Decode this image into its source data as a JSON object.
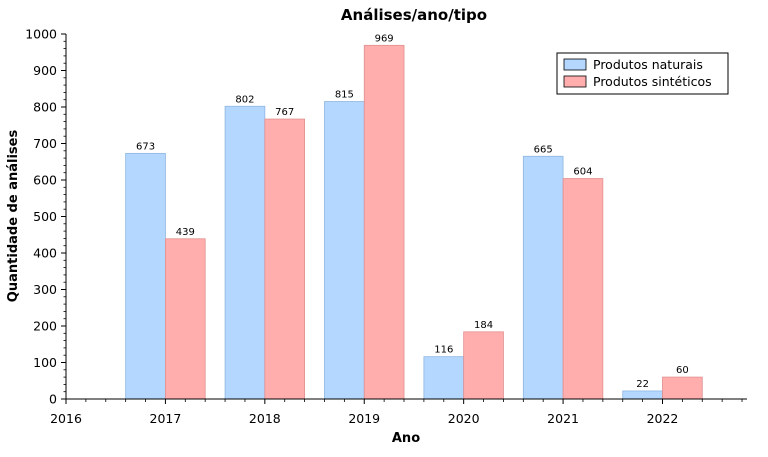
{
  "chart_data": {
    "type": "bar",
    "title": "Análises/ano/tipo",
    "xlabel": "Ano",
    "ylabel": "Quantidade de análises",
    "x_ticks": [
      "2016",
      "2017",
      "2018",
      "2019",
      "2020",
      "2021",
      "2022"
    ],
    "y_ticks": [
      "0",
      "100",
      "200",
      "300",
      "400",
      "500",
      "600",
      "700",
      "800",
      "900",
      "1000"
    ],
    "xlim": [
      2016,
      2022.85
    ],
    "ylim": [
      0,
      1000
    ],
    "categories": [
      "2017",
      "2018",
      "2019",
      "2020",
      "2021",
      "2022"
    ],
    "series": [
      {
        "name": "Produtos naturais",
        "color": "#b3d7ff",
        "values": [
          673,
          802,
          815,
          116,
          665,
          22
        ]
      },
      {
        "name": "Produtos sintéticos",
        "color": "#ffadad",
        "values": [
          439,
          767,
          969,
          184,
          604,
          60
        ]
      }
    ],
    "legend_position": "top-right",
    "grid": false
  }
}
